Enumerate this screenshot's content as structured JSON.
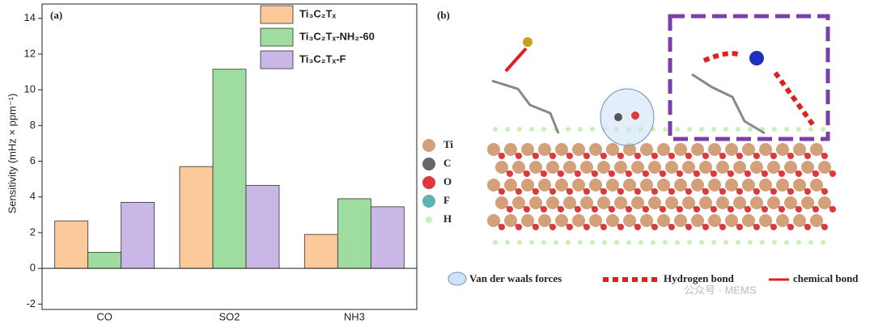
{
  "chart_data": {
    "type": "bar",
    "panel_label": "(a)",
    "y_label": "Sensitivity (mHz × ppm⁻¹)",
    "categories": [
      "CO",
      "SO2",
      "NH3"
    ],
    "series": [
      {
        "name": "Ti₃C₂Tₓ",
        "color": "#fcc99a",
        "values": [
          2.65,
          5.7,
          1.9
        ]
      },
      {
        "name": "Ti₃C₂Tₓ-NH₂-60",
        "color": "#9fdca0",
        "values": [
          0.9,
          11.15,
          3.9
        ]
      },
      {
        "name": "Ti₃C₂Tₓ-F",
        "color": "#c9b8e6",
        "values": [
          3.7,
          4.65,
          3.45
        ]
      }
    ],
    "ylim": [
      -2.3,
      14.8
    ],
    "yticks": [
      -2,
      0,
      2,
      4,
      6,
      8,
      10,
      12,
      14
    ],
    "legend": "upper right"
  },
  "diagram": {
    "panel_label": "(b)",
    "atoms": [
      {
        "label": "Ti",
        "color": "#d4a07a"
      },
      {
        "label": "C",
        "color": "#666666"
      },
      {
        "label": "O",
        "color": "#e0383a"
      },
      {
        "label": "F",
        "color": "#5fb3b0"
      },
      {
        "label": "H",
        "color": "#c8f0b8"
      }
    ],
    "legend": [
      "Van der waals forces",
      "Hydrogen bond",
      "chemical bond"
    ],
    "watermark": "公众号 · MEMS"
  }
}
